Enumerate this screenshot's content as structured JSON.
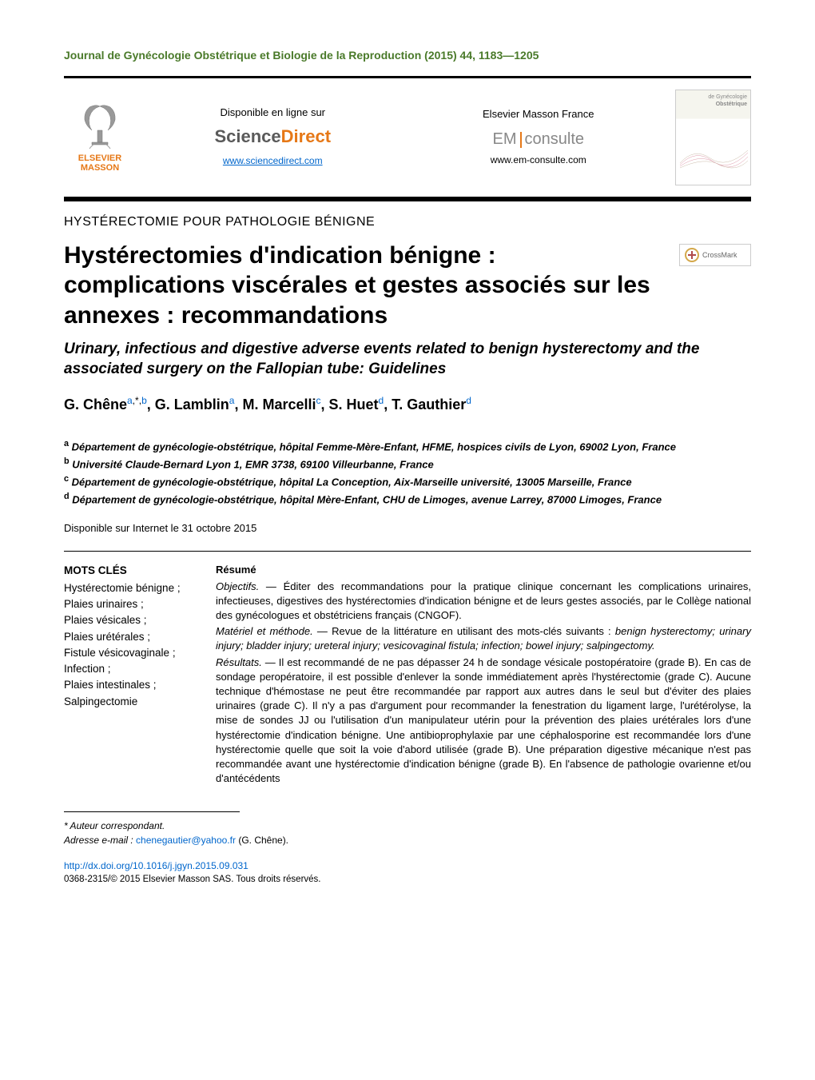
{
  "journal_header": "Journal de Gynécologie Obstétrique et Biologie de la Reproduction (2015) 44, 1183—1205",
  "header": {
    "elsevier_label_1": "ELSEVIER",
    "elsevier_label_2": "MASSON",
    "sd_available": "Disponible en ligne sur",
    "sd_science": "Science",
    "sd_direct": "Direct",
    "sd_url": "www.sciencedirect.com",
    "em_title": "Elsevier Masson France",
    "em_em": "EM",
    "em_consulte": "consulte",
    "em_url": "www.em-consulte.com",
    "cover_line1": "de Gynécologie",
    "cover_line2": "Obstétrique"
  },
  "section_label": "HYSTÉRECTOMIE POUR PATHOLOGIE BÉNIGNE",
  "title": "Hystérectomies d'indication bénigne : complications viscérales et gestes associés sur les annexes : recommandations",
  "subtitle": "Urinary, infectious and digestive adverse events related to benign hysterectomy and the associated surgery on the Fallopian tube: Guidelines",
  "crossmark": "CrossMark",
  "authors": [
    {
      "name": "G. Chêne",
      "refs": "a,*,b",
      "refs_html": "<span class='aff-link'>a</span>,<span>*</span>,<span class='aff-link'>b</span>"
    },
    {
      "name": "G. Lamblin",
      "refs": "a",
      "refs_html": "<span class='aff-link'>a</span>"
    },
    {
      "name": "M. Marcelli",
      "refs": "c",
      "refs_html": "<span class='aff-link'>c</span>"
    },
    {
      "name": "S. Huet",
      "refs": "d",
      "refs_html": "<span class='aff-link'>d</span>"
    },
    {
      "name": "T. Gauthier",
      "refs": "d",
      "refs_html": "<span class='aff-link'>d</span>"
    }
  ],
  "affiliations": [
    {
      "key": "a",
      "text": "Département de gynécologie-obstétrique, hôpital Femme-Mère-Enfant, HFME, hospices civils de Lyon, 69002 Lyon, France"
    },
    {
      "key": "b",
      "text": "Université Claude-Bernard Lyon 1, EMR 3738, 69100 Villeurbanne, France"
    },
    {
      "key": "c",
      "text": "Département de gynécologie-obstétrique, hôpital La Conception, Aix-Marseille université, 13005 Marseille, France"
    },
    {
      "key": "d",
      "text": "Département de gynécologie-obstétrique, hôpital Mère-Enfant, CHU de Limoges, avenue Larrey, 87000 Limoges, France"
    }
  ],
  "availability": "Disponible sur Internet le 31 octobre 2015",
  "keywords_label": "MOTS CLÉS",
  "keywords": [
    "Hystérectomie bénigne ;",
    "Plaies urinaires ;",
    "Plaies vésicales ;",
    "Plaies urétérales ;",
    "Fistule vésicovaginale ;",
    "Infection ;",
    "Plaies intestinales ;",
    "Salpingectomie"
  ],
  "abstract": {
    "heading": "Résumé",
    "objectifs_label": "Objectifs. —",
    "objectifs": "Éditer des recommandations pour la pratique clinique concernant les complications urinaires, infectieuses, digestives des hystérectomies d'indication bénigne et de leurs gestes associés, par le Collège national des gynécologues et obstétriciens français (CNGOF).",
    "materiel_label": "Matériel et méthode. —",
    "materiel_pre": "Revue de la littérature en utilisant des mots-clés suivants : ",
    "materiel_italics": "benign hysterectomy; urinary injury; bladder injury; ureteral injury; vesicovaginal fistula; infection; bowel injury; salpingectomy.",
    "resultats_label": "Résultats. —",
    "resultats": "Il est recommandé de ne pas dépasser 24 h de sondage vésicale postopératoire (grade B). En cas de sondage peropératoire, il est possible d'enlever la sonde immédiatement après l'hystérectomie (grade C). Aucune technique d'hémostase ne peut être recommandée par rapport aux autres dans le seul but d'éviter des plaies urinaires (grade C). Il n'y a pas d'argument pour recommander la fenestration du ligament large, l'urétérolyse, la mise de sondes JJ ou l'utilisation d'un manipulateur utérin pour la prévention des plaies urétérales lors d'une hystérectomie d'indication bénigne. Une antibioprophylaxie par une céphalosporine est recommandée lors d'une hystérectomie quelle que soit la voie d'abord utilisée (grade B). Une préparation digestive mécanique n'est pas recommandée avant une hystérectomie d'indication bénigne (grade B). En l'absence de pathologie ovarienne et/ou d'antécédents"
  },
  "footer": {
    "corresponding": "* Auteur correspondant.",
    "email_label": "Adresse e-mail :",
    "email": "chenegautier@yahoo.fr",
    "email_author": "(G. Chêne).",
    "doi": "http://dx.doi.org/10.1016/j.jgyn.2015.09.031",
    "copyright": "0368-2315/© 2015 Elsevier Masson SAS. Tous droits réservés."
  },
  "colors": {
    "green": "#4a7a2a",
    "orange": "#e67817",
    "blue": "#0066cc"
  }
}
